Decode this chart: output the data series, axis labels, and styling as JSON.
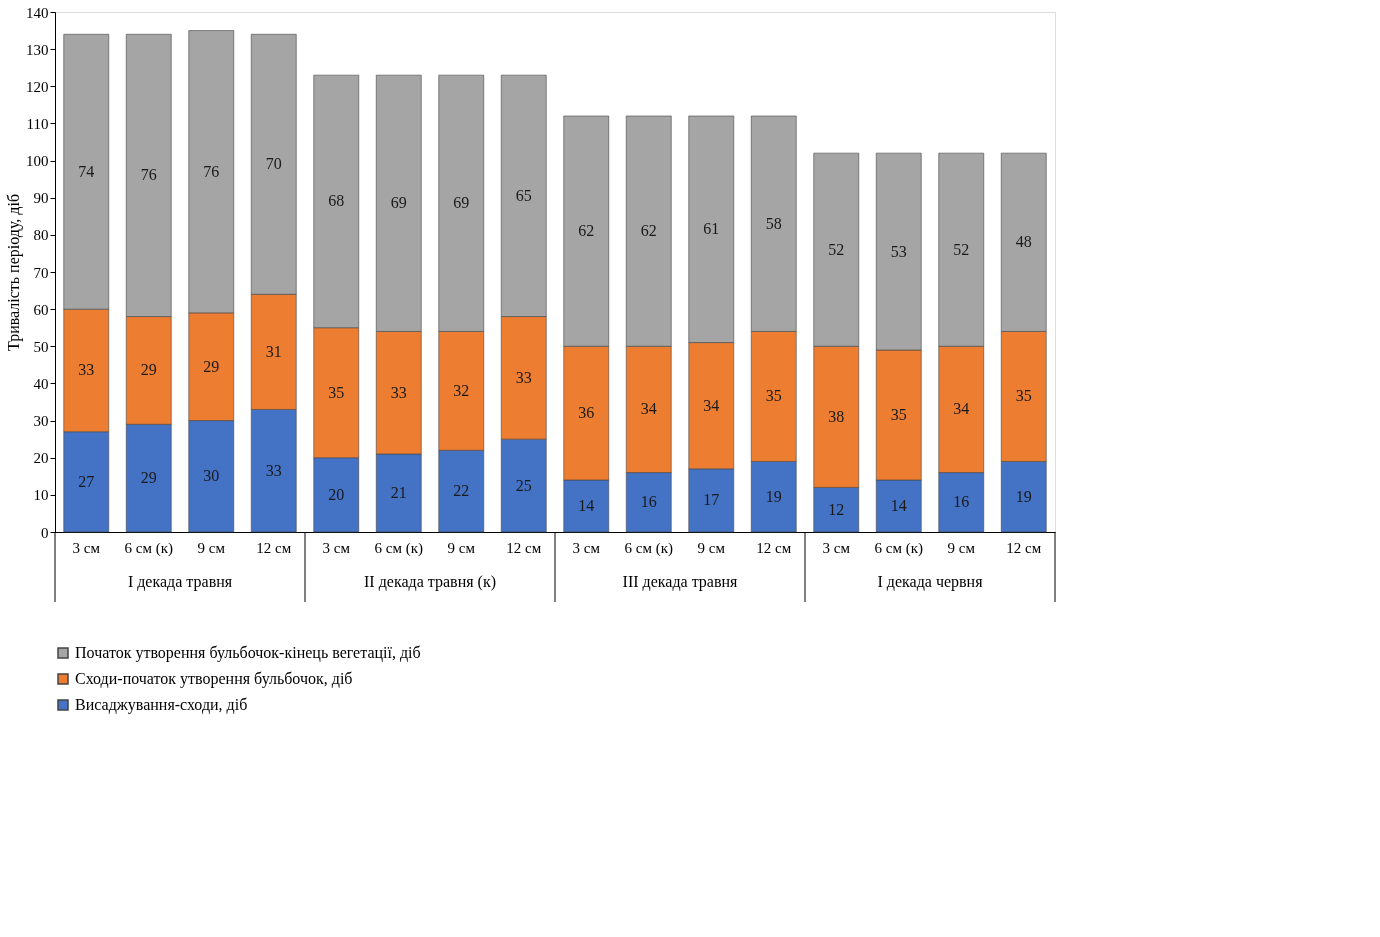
{
  "chart_data": {
    "type": "bar",
    "stacked": true,
    "ylabel": "Тривалість періоду, діб",
    "categories": [
      "3 см",
      "6 см (к)",
      "9 см",
      "12 см",
      "3 см",
      "6 см (к)",
      "9 см",
      "12 см",
      "3 см",
      "6 см (к)",
      "9 см",
      "12 см",
      "3 см",
      "6 см (к)",
      "9 см",
      "12 см"
    ],
    "series": [
      {
        "name": "Висаджування-сходи, діб",
        "color": "#4472c4",
        "values": [
          27,
          29,
          30,
          33,
          20,
          21,
          22,
          25,
          14,
          16,
          17,
          19,
          12,
          14,
          16,
          19
        ]
      },
      {
        "name": "Сходи-початок утворення бульбочок, діб",
        "color": "#ed7d31",
        "values": [
          33,
          29,
          29,
          31,
          35,
          33,
          32,
          33,
          36,
          34,
          34,
          35,
          38,
          35,
          34,
          35
        ]
      },
      {
        "name": "Початок утворення бульбочок-кінець вегетації, діб",
        "color": "#a5a5a5",
        "values": [
          74,
          76,
          76,
          70,
          68,
          69,
          69,
          65,
          62,
          62,
          61,
          58,
          52,
          53,
          52,
          48
        ]
      }
    ],
    "ylim": [
      0,
      140
    ],
    "yticks": [
      0,
      10,
      20,
      30,
      40,
      50,
      60,
      70,
      80,
      90,
      100,
      110,
      120,
      130,
      140
    ],
    "data_labels": true,
    "grid": false,
    "legend": "bottom",
    "annotations": [
      "I декада травня",
      "II декада травня (к)",
      "III декада травня",
      "I декада червня"
    ]
  }
}
